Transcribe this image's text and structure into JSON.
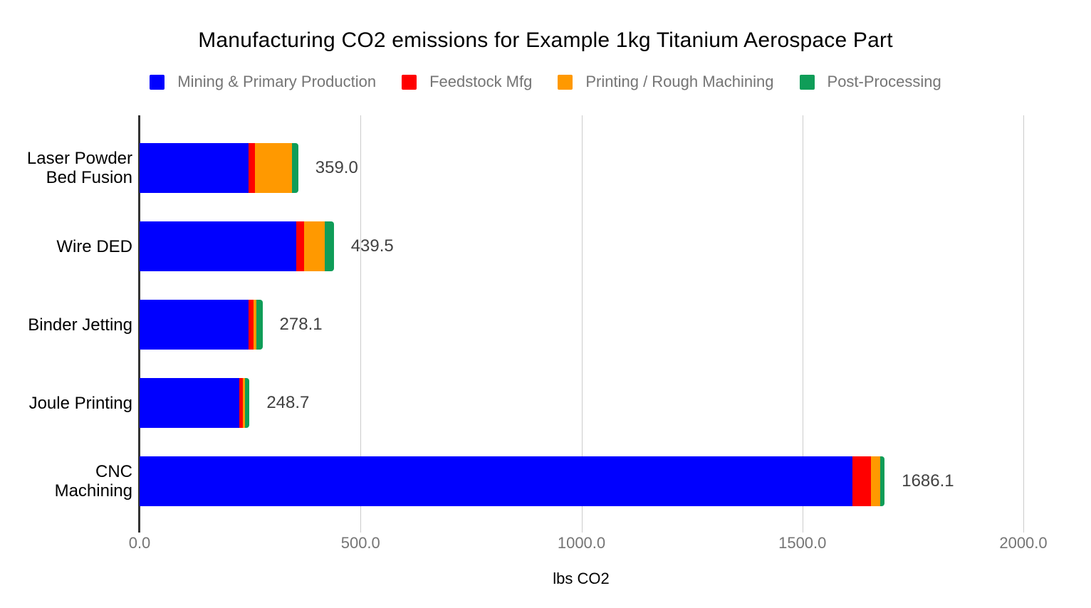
{
  "chart_data": {
    "type": "bar",
    "orientation": "horizontal",
    "stacked": true,
    "grid": true,
    "legend_position": "top",
    "title": "Manufacturing CO2 emissions for Example 1kg Titanium Aerospace Part",
    "xlabel": "lbs CO2",
    "categories": [
      "Laser Powder Bed Fusion",
      "Wire DED",
      "Binder Jetting",
      "Joule Printing",
      "CNC Machining"
    ],
    "series": [
      {
        "name": "Mining & Primary Production",
        "color": "#0000ff",
        "values": [
          246.0,
          355.0,
          246.0,
          226.0,
          1613.0
        ]
      },
      {
        "name": "Feedstock Mfg",
        "color": "#ff0000",
        "values": [
          14.5,
          16.5,
          12.0,
          7.5,
          42.0
        ]
      },
      {
        "name": "Printing / Rough Machining",
        "color": "#ff9900",
        "values": [
          84.0,
          47.5,
          7.1,
          4.5,
          21.1
        ]
      },
      {
        "name": "Post-Processing",
        "color": "#0f9d58",
        "values": [
          14.5,
          20.5,
          13.0,
          10.7,
          10.0
        ]
      }
    ],
    "totals": [
      359.0,
      439.5,
      278.1,
      248.7,
      1686.1
    ],
    "total_labels": [
      "359.0",
      "439.5",
      "278.1",
      "248.7",
      "1686.1"
    ],
    "x_ticks": [
      0,
      500,
      1000,
      1500,
      2000
    ],
    "x_tick_labels": [
      "0.0",
      "500.0",
      "1000.0",
      "1500.0",
      "2000.0"
    ],
    "xlim": [
      0,
      2000
    ]
  },
  "colors": {
    "background": "#ffffff",
    "gridline": "#cccccc",
    "axis_line": "#333333",
    "title_text": "#000000",
    "legend_text": "#757575",
    "category_text": "#000000",
    "value_text": "#424242",
    "tick_text": "#757575"
  }
}
